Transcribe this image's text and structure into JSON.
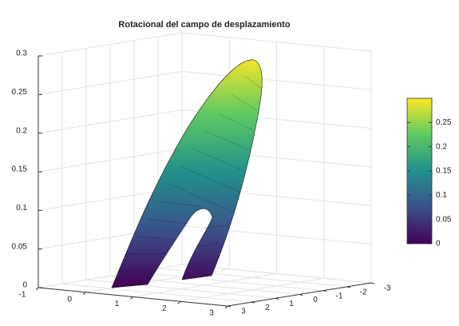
{
  "chart_data": {
    "type": "surface",
    "title": "Rotacional del campo de desplazamiento",
    "xlim": [
      -1,
      3
    ],
    "xticks": [
      -1,
      0,
      1,
      2,
      3
    ],
    "ylim": [
      -3,
      3
    ],
    "yticks": [
      3,
      2,
      1,
      0,
      -1,
      -2,
      -3
    ],
    "zlim": [
      0,
      0.3
    ],
    "zticks": [
      0,
      0.05,
      0.1,
      0.15,
      0.2,
      0.25,
      0.3
    ],
    "colormap": [
      "#440154",
      "#3b528b",
      "#21918c",
      "#5ec962",
      "#fde725"
    ],
    "clim": [
      0,
      0.3
    ],
    "cticks": [
      0,
      0.05,
      0.1,
      0.15,
      0.2,
      0.25
    ],
    "grid": true
  }
}
